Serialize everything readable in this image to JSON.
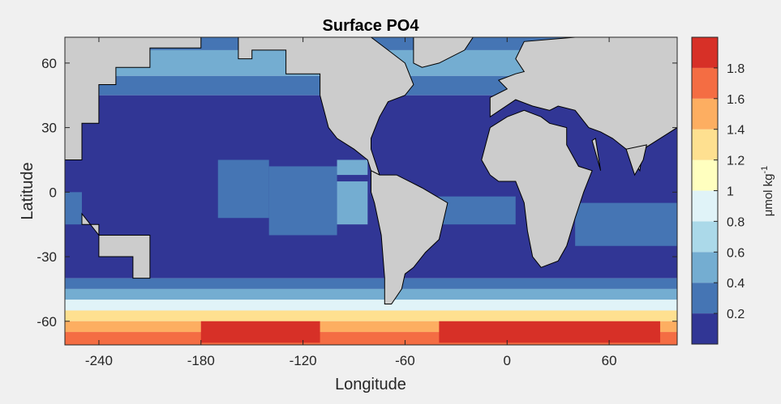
{
  "chart_data": {
    "type": "heatmap",
    "title": "Surface PO4",
    "xlabel": "Longitude",
    "ylabel": "Latitude",
    "xlim": [
      -260,
      100
    ],
    "ylim": [
      -71,
      72
    ],
    "x_ticks": [
      -240,
      -180,
      -120,
      -60,
      0,
      60
    ],
    "y_ticks": [
      -60,
      -30,
      0,
      30,
      60
    ],
    "x_tick_labels": [
      "-240",
      "-180",
      "-120",
      "-60",
      "0",
      "60"
    ],
    "y_tick_labels": [
      "-60",
      "-30",
      "0",
      "30",
      "60"
    ],
    "colorbar": {
      "label": "μmol kg",
      "label_superscript": "-1",
      "levels": [
        0,
        0.2,
        0.4,
        0.6,
        0.8,
        1.0,
        1.2,
        1.4,
        1.6,
        1.8,
        2.0
      ],
      "tick_values": [
        0.2,
        0.4,
        0.6,
        0.8,
        1.0,
        1.2,
        1.4,
        1.6,
        1.8
      ],
      "tick_labels": [
        "0.2",
        "0.4",
        "0.6",
        "0.8",
        "1",
        "1.2",
        "1.4",
        "1.6",
        "1.8"
      ],
      "colors": [
        "#313695",
        "#4575b4",
        "#74add1",
        "#abd9e9",
        "#e0f3f8",
        "#ffffbf",
        "#fee090",
        "#fdae61",
        "#f46d43",
        "#d73027",
        "#a50026"
      ]
    },
    "land_color": "#cccccc",
    "band_values": [
      {
        "lat": [
          66,
          72
        ],
        "value": 0.3
      },
      {
        "lat": [
          54,
          66
        ],
        "value": 0.5
      },
      {
        "lat": [
          45,
          54
        ],
        "value": 0.35
      },
      {
        "lat": [
          -40,
          45
        ],
        "value": 0.1
      },
      {
        "lat": [
          -45,
          -40
        ],
        "value": 0.3
      },
      {
        "lat": [
          -50,
          -45
        ],
        "value": 0.5
      },
      {
        "lat": [
          -55,
          -50
        ],
        "value": 0.9
      },
      {
        "lat": [
          -60,
          -55
        ],
        "value": 1.25
      },
      {
        "lat": [
          -65,
          -60
        ],
        "value": 1.55
      },
      {
        "lat": [
          -71,
          -65
        ],
        "value": 1.75
      }
    ],
    "patches": [
      {
        "lon": [
          -170,
          -140
        ],
        "lat": [
          -12,
          15
        ],
        "value": 0.3
      },
      {
        "lon": [
          -140,
          -100
        ],
        "lat": [
          -20,
          12
        ],
        "value": 0.3
      },
      {
        "lon": [
          -100,
          -82
        ],
        "lat": [
          -15,
          5
        ],
        "value": 0.5
      },
      {
        "lon": [
          -100,
          -82
        ],
        "lat": [
          8,
          15
        ],
        "value": 0.5
      },
      {
        "lon": [
          -50,
          5
        ],
        "lat": [
          -15,
          -2
        ],
        "value": 0.3
      },
      {
        "lon": [
          40,
          100
        ],
        "lat": [
          -25,
          -5
        ],
        "value": 0.3
      },
      {
        "lon": [
          -180,
          -110
        ],
        "lat": [
          -70,
          -60
        ],
        "value": 1.95
      },
      {
        "lon": [
          -40,
          90
        ],
        "lat": [
          -70,
          -60
        ],
        "value": 1.95
      },
      {
        "lon": [
          -260,
          -250
        ],
        "lat": [
          -15,
          0
        ],
        "value": 0.3
      }
    ],
    "land_polygons": [
      [
        [
          -260,
          15
        ],
        [
          -250,
          15
        ],
        [
          -250,
          32
        ],
        [
          -240,
          32
        ],
        [
          -240,
          50
        ],
        [
          -230,
          50
        ],
        [
          -230,
          58
        ],
        [
          -210,
          58
        ],
        [
          -210,
          67
        ],
        [
          -180,
          67
        ],
        [
          -180,
          72
        ],
        [
          -260,
          72
        ]
      ],
      [
        [
          -250,
          -15
        ],
        [
          -240,
          -15
        ],
        [
          -240,
          -30
        ],
        [
          -220,
          -30
        ],
        [
          -220,
          -40
        ],
        [
          -210,
          -40
        ],
        [
          -210,
          -30
        ],
        [
          -210,
          -20
        ],
        [
          -240,
          -20
        ],
        [
          -250,
          -10
        ]
      ],
      [
        [
          -158,
          62
        ],
        [
          -150,
          62
        ],
        [
          -150,
          66
        ],
        [
          -130,
          66
        ],
        [
          -130,
          55
        ],
        [
          -110,
          55
        ],
        [
          -110,
          45
        ],
        [
          -105,
          30
        ],
        [
          -100,
          25
        ],
        [
          -90,
          20
        ],
        [
          -82,
          15
        ],
        [
          -80,
          10
        ],
        [
          -75,
          8
        ],
        [
          -80,
          20
        ],
        [
          -80,
          25
        ],
        [
          -75,
          35
        ],
        [
          -70,
          42
        ],
        [
          -60,
          45
        ],
        [
          -55,
          50
        ],
        [
          -60,
          60
        ],
        [
          -70,
          66
        ],
        [
          -80,
          72
        ],
        [
          -158,
          72
        ]
      ],
      [
        [
          -80,
          10
        ],
        [
          -75,
          8
        ],
        [
          -65,
          8
        ],
        [
          -50,
          2
        ],
        [
          -35,
          -5
        ],
        [
          -40,
          -22
        ],
        [
          -48,
          -28
        ],
        [
          -55,
          -35
        ],
        [
          -60,
          -38
        ],
        [
          -62,
          -45
        ],
        [
          -68,
          -52
        ],
        [
          -72,
          -52
        ],
        [
          -72,
          -40
        ],
        [
          -74,
          -20
        ],
        [
          -78,
          -5
        ],
        [
          -80,
          0
        ]
      ],
      [
        [
          -55,
          60
        ],
        [
          -50,
          58
        ],
        [
          -40,
          60
        ],
        [
          -25,
          66
        ],
        [
          -20,
          72
        ],
        [
          -55,
          72
        ]
      ],
      [
        [
          -15,
          15
        ],
        [
          -10,
          30
        ],
        [
          0,
          35
        ],
        [
          10,
          38
        ],
        [
          20,
          35
        ],
        [
          25,
          32
        ],
        [
          35,
          30
        ],
        [
          35,
          22
        ],
        [
          42,
          12
        ],
        [
          50,
          10
        ],
        [
          45,
          0
        ],
        [
          40,
          -12
        ],
        [
          35,
          -25
        ],
        [
          30,
          -32
        ],
        [
          20,
          -35
        ],
        [
          15,
          -30
        ],
        [
          12,
          -18
        ],
        [
          10,
          -5
        ],
        [
          5,
          5
        ],
        [
          -5,
          5
        ],
        [
          -10,
          8
        ]
      ],
      [
        [
          -10,
          35
        ],
        [
          -10,
          44
        ],
        [
          0,
          48
        ],
        [
          -5,
          52
        ],
        [
          5,
          55
        ],
        [
          10,
          56
        ],
        [
          5,
          62
        ],
        [
          10,
          70
        ],
        [
          40,
          72
        ],
        [
          100,
          72
        ],
        [
          100,
          30
        ],
        [
          90,
          25
        ],
        [
          80,
          20
        ],
        [
          78,
          10
        ],
        [
          70,
          20
        ],
        [
          62,
          25
        ],
        [
          55,
          28
        ],
        [
          48,
          30
        ],
        [
          40,
          38
        ],
        [
          30,
          40
        ],
        [
          25,
          38
        ],
        [
          15,
          40
        ],
        [
          5,
          43
        ]
      ],
      [
        [
          50,
          24
        ],
        [
          55,
          10
        ],
        [
          52,
          25
        ]
      ],
      [
        [
          70,
          20
        ],
        [
          75,
          8
        ],
        [
          80,
          15
        ],
        [
          82,
          22
        ]
      ]
    ]
  }
}
